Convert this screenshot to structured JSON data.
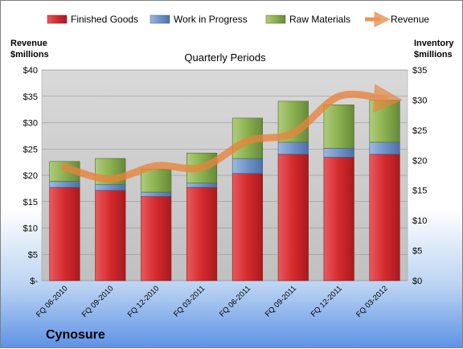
{
  "brand": "Cynosure",
  "chart_data": {
    "type": "bar",
    "stacked": true,
    "title": "Quarterly Periods",
    "ylabel_left": [
      "Revenue",
      "$millions"
    ],
    "ylabel_right": [
      "Inventory",
      "$millions"
    ],
    "categories": [
      "FQ 06-2010",
      "FQ 09-2010",
      "FQ 12-2010",
      "FQ 03-2011",
      "FQ 06-2011",
      "FQ 09-2011",
      "FQ 12-2011",
      "FQ 03-2012"
    ],
    "left_ticks": [
      "$-",
      "$5",
      "$10",
      "$15",
      "$20",
      "$25",
      "$30",
      "$35",
      "$40"
    ],
    "right_ticks": [
      "$0",
      "$5",
      "$10",
      "$15",
      "$20",
      "$25",
      "$30",
      "$35"
    ],
    "ylim_left": [
      0,
      40
    ],
    "ylim_right": [
      0,
      35
    ],
    "legend_position": "top",
    "grid": true,
    "series": [
      {
        "name": "Finished Goods",
        "axis": "right",
        "color": "#d42a2e",
        "values": [
          15.5,
          15.0,
          14.0,
          15.5,
          17.8,
          21.0,
          20.5,
          21.0
        ]
      },
      {
        "name": "Work in Progress",
        "axis": "right",
        "color": "#6f93c9",
        "values": [
          1.0,
          1.0,
          0.7,
          0.7,
          2.5,
          2.0,
          1.5,
          2.0
        ]
      },
      {
        "name": "Raw Materials",
        "axis": "right",
        "color": "#8ab04e",
        "values": [
          3.3,
          4.3,
          3.8,
          5.0,
          6.7,
          6.8,
          7.2,
          7.0
        ]
      },
      {
        "name": "Revenue",
        "axis": "left",
        "type": "line",
        "color": "#e8843c",
        "values": [
          21.5,
          19.3,
          21.8,
          21.5,
          26.5,
          28.0,
          35.0,
          34.5
        ]
      }
    ]
  }
}
